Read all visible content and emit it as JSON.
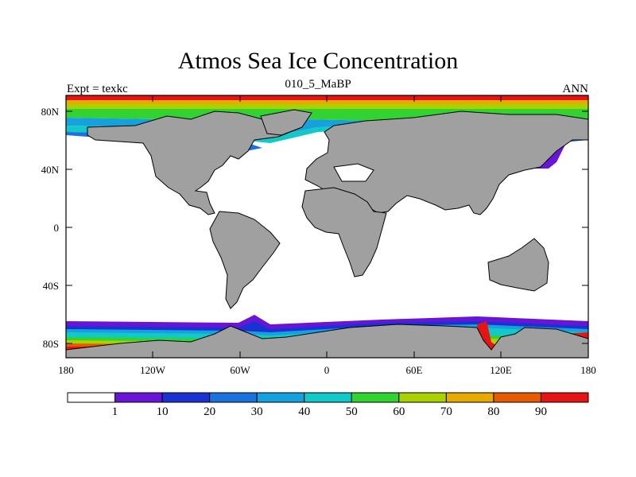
{
  "title": "Atmos Sea Ice Concentration",
  "subtitle": "010_5_MaBP",
  "left_string": "Expt = texkc",
  "right_string": "ANN",
  "colors": {
    "ocean": "#ffffff",
    "land": "#a0a0a0",
    "outline": "#000000"
  },
  "lat_labels": [
    "80N",
    "40N",
    "0",
    "40S",
    "80S"
  ],
  "lon_labels": [
    "180",
    "120W",
    "60W",
    "0",
    "60E",
    "120E",
    "180"
  ],
  "colorbar": {
    "colors": [
      "#ffffff",
      "#6a14d8",
      "#1a32d2",
      "#1a72dc",
      "#16a0dc",
      "#12c8c8",
      "#32d232",
      "#aad200",
      "#e6aa00",
      "#e65a00",
      "#e61414"
    ],
    "labels": [
      "1",
      "10",
      "20",
      "30",
      "40",
      "50",
      "60",
      "70",
      "80",
      "90"
    ]
  }
}
